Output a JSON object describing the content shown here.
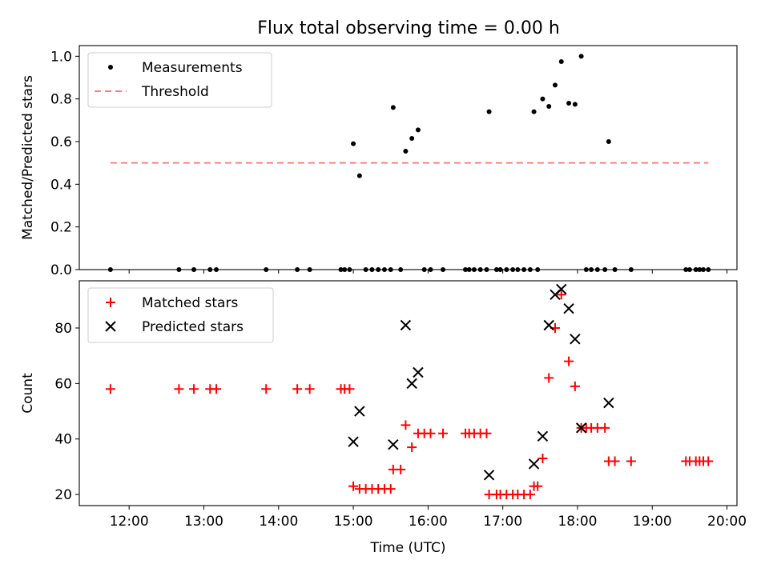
{
  "chart_data": [
    {
      "type": "scatter",
      "title": "Flux total observing time = 0.00 h",
      "xlabel": "",
      "ylabel": "Matched/Predicted stars",
      "xlim": [
        "11:20",
        "20:08"
      ],
      "ylim": [
        0,
        1.05
      ],
      "xticks": [
        "12:00",
        "13:00",
        "14:00",
        "15:00",
        "16:00",
        "17:00",
        "18:00",
        "19:00",
        "20:00"
      ],
      "yticks": [
        "0.0",
        "0.2",
        "0.4",
        "0.6",
        "0.8",
        "1.0"
      ],
      "legend": {
        "placement": "upper-left",
        "entries": [
          {
            "label": "Measurements",
            "marker": "dot",
            "color": "#000000"
          },
          {
            "label": "Threshold",
            "marker": "dashed-line",
            "color": "#ff7f7f"
          }
        ]
      },
      "series": [
        {
          "name": "Measurements",
          "color": "#000000",
          "points": [
            [
              "11:45",
              0
            ],
            [
              "12:40",
              0
            ],
            [
              "12:52",
              0
            ],
            [
              "13:05",
              0
            ],
            [
              "13:10",
              0
            ],
            [
              "13:50",
              0
            ],
            [
              "14:15",
              0
            ],
            [
              "14:25",
              0
            ],
            [
              "14:50",
              0
            ],
            [
              "14:53",
              0
            ],
            [
              "14:57",
              0
            ],
            [
              "15:00",
              0.59
            ],
            [
              "15:05",
              0.44
            ],
            [
              "15:10",
              0
            ],
            [
              "15:15",
              0
            ],
            [
              "15:20",
              0
            ],
            [
              "15:25",
              0
            ],
            [
              "15:30",
              0
            ],
            [
              "15:32",
              0.76
            ],
            [
              "15:38",
              0
            ],
            [
              "15:42",
              0.555
            ],
            [
              "15:47",
              0.615
            ],
            [
              "15:52",
              0.655
            ],
            [
              "15:57",
              0
            ],
            [
              "16:02",
              0
            ],
            [
              "16:12",
              0
            ],
            [
              "16:30",
              0
            ],
            [
              "16:33",
              0
            ],
            [
              "16:37",
              0
            ],
            [
              "16:42",
              0
            ],
            [
              "16:47",
              0
            ],
            [
              "16:49",
              0.74
            ],
            [
              "16:55",
              0
            ],
            [
              "16:58",
              0
            ],
            [
              "17:03",
              0
            ],
            [
              "17:08",
              0
            ],
            [
              "17:12",
              0
            ],
            [
              "17:17",
              0
            ],
            [
              "17:22",
              0
            ],
            [
              "17:25",
              0.74
            ],
            [
              "17:28",
              0
            ],
            [
              "17:32",
              0.8
            ],
            [
              "17:37",
              0.765
            ],
            [
              "17:42",
              0.865
            ],
            [
              "17:47",
              0.975
            ],
            [
              "17:53",
              0.78
            ],
            [
              "17:58",
              0.775
            ],
            [
              "18:03",
              1.0
            ],
            [
              "18:07",
              0
            ],
            [
              "18:11",
              0
            ],
            [
              "18:16",
              0
            ],
            [
              "18:22",
              0
            ],
            [
              "18:25",
              0.6
            ],
            [
              "18:30",
              0
            ],
            [
              "18:43",
              0
            ],
            [
              "19:27",
              0
            ],
            [
              "19:30",
              0
            ],
            [
              "19:35",
              0
            ],
            [
              "19:38",
              0
            ],
            [
              "19:41",
              0
            ],
            [
              "19:45",
              0
            ]
          ]
        },
        {
          "name": "Threshold",
          "color": "#ff7f7f",
          "points": [
            [
              "11:45",
              0.5
            ],
            [
              "19:45",
              0.5
            ]
          ]
        }
      ]
    },
    {
      "type": "scatter",
      "title": "",
      "xlabel": "Time (UTC)",
      "ylabel": "Count",
      "xlim": [
        "11:20",
        "20:08"
      ],
      "ylim": [
        16,
        97
      ],
      "xticks": [
        "12:00",
        "13:00",
        "14:00",
        "15:00",
        "16:00",
        "17:00",
        "18:00",
        "19:00",
        "20:00"
      ],
      "yticks": [
        "20",
        "40",
        "60",
        "80"
      ],
      "legend": {
        "placement": "upper-left",
        "entries": [
          {
            "label": "Matched stars",
            "marker": "plus",
            "color": "#ff0000"
          },
          {
            "label": "Predicted stars",
            "marker": "x",
            "color": "#000000"
          }
        ]
      },
      "series": [
        {
          "name": "Matched stars",
          "color": "#ff0000",
          "points": [
            [
              "11:45",
              58
            ],
            [
              "12:40",
              58
            ],
            [
              "12:52",
              58
            ],
            [
              "13:05",
              58
            ],
            [
              "13:10",
              58
            ],
            [
              "13:50",
              58
            ],
            [
              "14:15",
              58
            ],
            [
              "14:25",
              58
            ],
            [
              "14:50",
              58
            ],
            [
              "14:53",
              58
            ],
            [
              "14:57",
              58
            ],
            [
              "15:00",
              23
            ],
            [
              "15:05",
              22
            ],
            [
              "15:10",
              22
            ],
            [
              "15:15",
              22
            ],
            [
              "15:20",
              22
            ],
            [
              "15:25",
              22
            ],
            [
              "15:30",
              22
            ],
            [
              "15:32",
              29
            ],
            [
              "15:38",
              29
            ],
            [
              "15:42",
              45
            ],
            [
              "15:47",
              37
            ],
            [
              "15:52",
              42
            ],
            [
              "15:57",
              42
            ],
            [
              "16:02",
              42
            ],
            [
              "16:12",
              42
            ],
            [
              "16:30",
              42
            ],
            [
              "16:33",
              42
            ],
            [
              "16:37",
              42
            ],
            [
              "16:42",
              42
            ],
            [
              "16:47",
              42
            ],
            [
              "16:49",
              20
            ],
            [
              "16:55",
              20
            ],
            [
              "16:58",
              20
            ],
            [
              "17:03",
              20
            ],
            [
              "17:08",
              20
            ],
            [
              "17:12",
              20
            ],
            [
              "17:17",
              20
            ],
            [
              "17:22",
              20
            ],
            [
              "17:25",
              23
            ],
            [
              "17:28",
              23
            ],
            [
              "17:32",
              33
            ],
            [
              "17:37",
              62
            ],
            [
              "17:42",
              80
            ],
            [
              "17:47",
              92
            ],
            [
              "17:53",
              68
            ],
            [
              "17:58",
              59
            ],
            [
              "18:03",
              44
            ],
            [
              "18:07",
              44
            ],
            [
              "18:11",
              44
            ],
            [
              "18:16",
              44
            ],
            [
              "18:22",
              44
            ],
            [
              "18:25",
              32
            ],
            [
              "18:30",
              32
            ],
            [
              "18:43",
              32
            ],
            [
              "19:27",
              32
            ],
            [
              "19:30",
              32
            ],
            [
              "19:35",
              32
            ],
            [
              "19:38",
              32
            ],
            [
              "19:41",
              32
            ],
            [
              "19:45",
              32
            ]
          ]
        },
        {
          "name": "Predicted stars",
          "color": "#000000",
          "points": [
            [
              "15:00",
              39
            ],
            [
              "15:05",
              50
            ],
            [
              "15:32",
              38
            ],
            [
              "15:42",
              81
            ],
            [
              "15:47",
              60
            ],
            [
              "15:52",
              64
            ],
            [
              "16:49",
              27
            ],
            [
              "17:25",
              31
            ],
            [
              "17:32",
              41
            ],
            [
              "17:37",
              81
            ],
            [
              "17:42",
              92
            ],
            [
              "17:47",
              94
            ],
            [
              "17:53",
              87
            ],
            [
              "17:58",
              76
            ],
            [
              "18:03",
              44
            ],
            [
              "18:25",
              53
            ]
          ]
        }
      ]
    }
  ]
}
